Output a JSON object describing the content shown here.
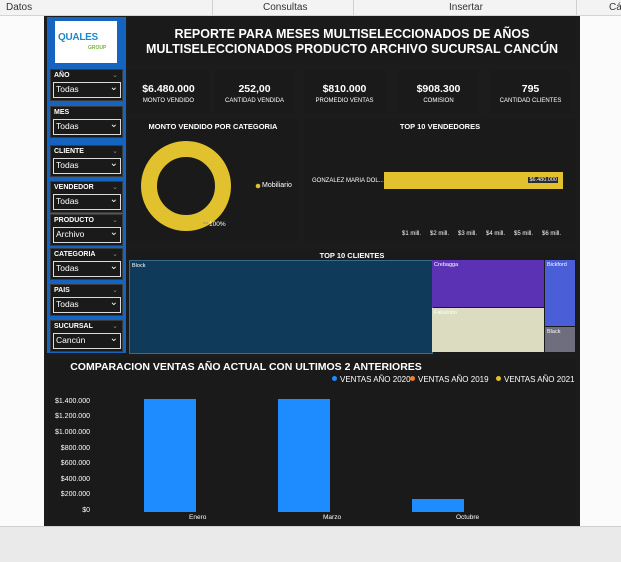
{
  "menu": {
    "items": [
      "Datos",
      "Consultas",
      "Insertar",
      "Cá"
    ]
  },
  "logo": {
    "name": "QUALES",
    "sub": "GROUP"
  },
  "title": {
    "line1": "REPORTE PARA MESES MULTISELECCIONADOS DE AÑOS",
    "line2": "MULTISELECCIONADOS PRODUCTO ARCHIVO SUCURSAL CANCÚN"
  },
  "slicers": [
    {
      "label": "AÑO",
      "value": "Todas"
    },
    {
      "label": "MES",
      "value": "Todas"
    },
    {
      "label": "CLIENTE",
      "value": "Todas"
    },
    {
      "label": "VENDEDOR",
      "value": "Todas"
    },
    {
      "label": "PRODUCTO",
      "value": "Archivo"
    },
    {
      "label": "CATEGORIA",
      "value": "Todas"
    },
    {
      "label": "PAIS",
      "value": "Todas"
    },
    {
      "label": "SUCURSAL",
      "value": "Cancún"
    }
  ],
  "kpis": [
    {
      "value": "$6.480.000",
      "label": "MONTO VENDIDO"
    },
    {
      "value": "252,00",
      "label": "CANTIDAD VENDIDA"
    },
    {
      "value": "$810.000",
      "label": "PROMEDIO VENTAS"
    },
    {
      "value": "$908.300",
      "label": "COMISION"
    },
    {
      "value": "795",
      "label": "CANTIDAD CLIENTES"
    }
  ],
  "colors": {
    "accent": "#e2c12e",
    "blue": "#1e8bff",
    "orange": "#f07d2a",
    "yellow": "#e2c12e",
    "panel": "#1a1a1a",
    "sidebar": "#1565c0"
  },
  "chart_data": [
    {
      "type": "pie",
      "title": "MONTO VENDIDO POR CATEGORIA",
      "categories": [
        "Mobiliario"
      ],
      "values": [
        100
      ],
      "labels": [
        "100%"
      ]
    },
    {
      "type": "bar",
      "orientation": "horizontal",
      "title": "TOP 10 VENDEDORES",
      "categories": [
        "GONZALEZ MARIA DOL..."
      ],
      "values": [
        6480000
      ],
      "data_labels": [
        "$6.480.000"
      ],
      "xlim": [
        0,
        6500000
      ],
      "xticks": [
        "$1 mill.",
        "$2 mill.",
        "$3 mill.",
        "$4 mill.",
        "$5 mill.",
        "$6 mill."
      ]
    },
    {
      "type": "treemap",
      "title": "TOP 10 CLIENTES",
      "categories": [
        "Block",
        "Crebagga",
        "Fabalotto",
        "Bickford",
        "Black"
      ],
      "colors": [
        "#0f3a5a",
        "#5c32b4",
        "#dcdcc0",
        "#4a5ed8",
        "#6e6e7e"
      ]
    },
    {
      "type": "bar",
      "title": "COMPARACION VENTAS AÑO ACTUAL CON ULTIMOS 2 ANTERIORES",
      "categories": [
        "Enero",
        "Marzo",
        "Octubre"
      ],
      "series": [
        {
          "name": "VENTAS AÑO 2020",
          "values": [
            1450000,
            1450000,
            170000
          ]
        },
        {
          "name": "VENTAS AÑO 2019",
          "values": [
            0,
            0,
            0
          ]
        },
        {
          "name": "VENTAS AÑO 2021",
          "values": [
            0,
            0,
            0
          ]
        }
      ],
      "ylim": [
        0,
        1500000
      ],
      "yticks": [
        "$0",
        "$200.000",
        "$400.000",
        "$600.000",
        "$800.000",
        "$1.000.000",
        "$1.200.000",
        "$1.400.000"
      ]
    }
  ]
}
